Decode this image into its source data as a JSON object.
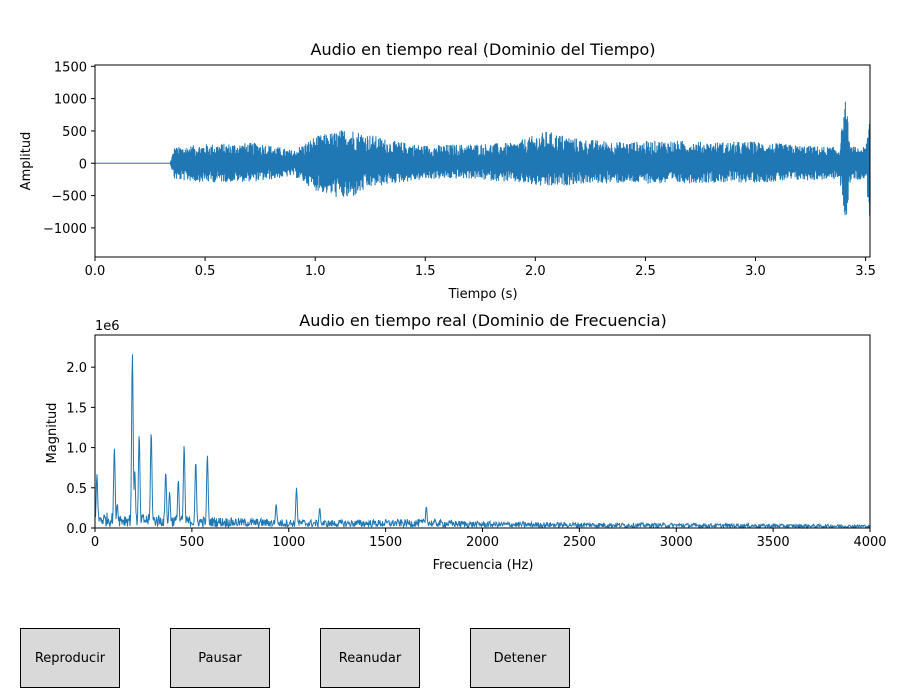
{
  "chart_data": [
    {
      "type": "line",
      "title": "Audio en tiempo real (Dominio del Tiempo)",
      "xlabel": "Tiempo (s)",
      "ylabel": "Amplitud",
      "xlim": [
        0.0,
        3.52
      ],
      "ylim": [
        -1450,
        1520
      ],
      "xticks": [
        "0.0",
        "0.5",
        "1.0",
        "1.5",
        "2.0",
        "2.5",
        "3.0",
        "3.5"
      ],
      "xtick_values": [
        0.0,
        0.5,
        1.0,
        1.5,
        2.0,
        2.5,
        3.0,
        3.5
      ],
      "yticks": [
        "1500",
        "1000",
        "500",
        "0",
        "−500",
        "−1000"
      ],
      "ytick_values": [
        1500,
        1000,
        500,
        0,
        -500,
        -1000
      ],
      "color": "#1f77b4",
      "envelope": {
        "t": [
          0.0,
          0.34,
          0.36,
          0.5,
          0.75,
          0.9,
          1.0,
          1.1,
          1.15,
          1.25,
          1.35,
          1.5,
          1.7,
          1.9,
          2.05,
          2.2,
          2.4,
          2.6,
          2.8,
          3.0,
          3.2,
          3.38,
          3.41,
          3.43,
          3.5,
          3.52
        ],
        "upper": [
          0,
          0,
          250,
          300,
          320,
          200,
          420,
          500,
          550,
          450,
          350,
          280,
          300,
          320,
          500,
          380,
          330,
          360,
          330,
          340,
          280,
          250,
          1020,
          260,
          250,
          850
        ],
        "lower": [
          0,
          0,
          -260,
          -300,
          -280,
          -200,
          -420,
          -540,
          -570,
          -380,
          -320,
          -250,
          -240,
          -300,
          -380,
          -320,
          -310,
          -320,
          -300,
          -300,
          -270,
          -250,
          -950,
          -260,
          -250,
          -950
        ]
      }
    },
    {
      "type": "line",
      "title": "Audio en tiempo real (Dominio de Frecuencia)",
      "xlabel": "Frecuencia (Hz)",
      "ylabel": "Magnitud",
      "offset_label": "1e6",
      "xlim": [
        0,
        4000
      ],
      "ylim": [
        0,
        2400000
      ],
      "xticks": [
        "0",
        "500",
        "1000",
        "1500",
        "2000",
        "2500",
        "3000",
        "3500",
        "4000"
      ],
      "xtick_values": [
        0,
        500,
        1000,
        1500,
        2000,
        2500,
        3000,
        3500,
        4000
      ],
      "yticks": [
        "0.0",
        "0.5",
        "1.0",
        "1.5",
        "2.0"
      ],
      "ytick_values": [
        0,
        500000,
        1000000,
        1500000,
        2000000
      ],
      "color": "#1f77b4",
      "peaks": [
        {
          "f": 10,
          "mag": 670000
        },
        {
          "f": 100,
          "mag": 1000000
        },
        {
          "f": 115,
          "mag": 300000
        },
        {
          "f": 193,
          "mag": 2180000
        },
        {
          "f": 205,
          "mag": 730000
        },
        {
          "f": 228,
          "mag": 1170000
        },
        {
          "f": 290,
          "mag": 1200000
        },
        {
          "f": 365,
          "mag": 700000
        },
        {
          "f": 385,
          "mag": 450000
        },
        {
          "f": 430,
          "mag": 600000
        },
        {
          "f": 460,
          "mag": 1030000
        },
        {
          "f": 520,
          "mag": 830000
        },
        {
          "f": 580,
          "mag": 910000
        },
        {
          "f": 935,
          "mag": 300000
        },
        {
          "f": 1040,
          "mag": 500000
        },
        {
          "f": 1160,
          "mag": 250000
        },
        {
          "f": 1710,
          "mag": 270000
        }
      ],
      "noise_floor": {
        "f": [
          0,
          200,
          500,
          800,
          1200,
          1700,
          2000,
          2500,
          3000,
          3500,
          4000
        ],
        "mag": [
          200000,
          180000,
          150000,
          120000,
          100000,
          110000,
          80000,
          70000,
          60000,
          50000,
          40000
        ]
      }
    }
  ],
  "buttons": {
    "play": "Reproducir",
    "pause": "Pausar",
    "resume": "Reanudar",
    "stop": "Detener"
  }
}
